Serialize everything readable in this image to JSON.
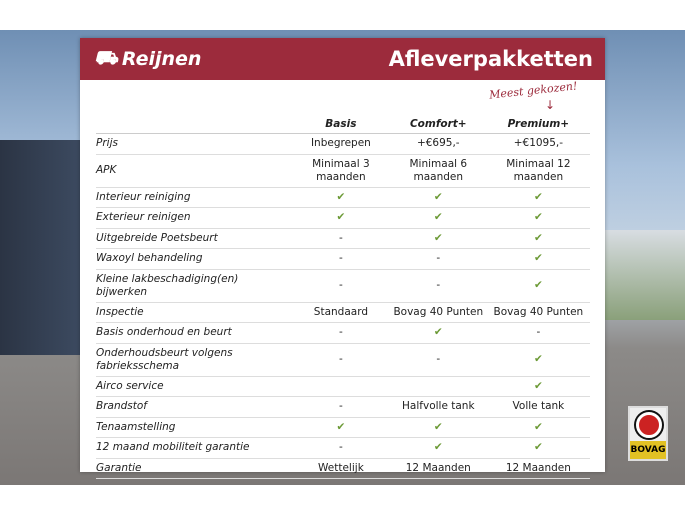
{
  "header": {
    "logo": "Reijnen",
    "title": "Afleverpakketten"
  },
  "note": "Meest gekozen!",
  "columns": [
    "Basis",
    "Comfort+",
    "Premium+"
  ],
  "rows": [
    {
      "label": "Prijs",
      "values": [
        "Inbegrepen",
        "+€695,-",
        "+€1095,-"
      ]
    },
    {
      "label": "APK",
      "values": [
        "Minimaal 3 maanden",
        "Minimaal 6 maanden",
        "Minimaal 12 maanden"
      ]
    },
    {
      "label": "Interieur reiniging",
      "values": [
        "✔",
        "✔",
        "✔"
      ]
    },
    {
      "label": "Exterieur reinigen",
      "values": [
        "✔",
        "✔",
        "✔"
      ]
    },
    {
      "label": "Uitgebreide Poetsbeurt",
      "values": [
        "-",
        "✔",
        "✔"
      ]
    },
    {
      "label": "Waxoyl behandeling",
      "values": [
        "-",
        "-",
        "✔"
      ]
    },
    {
      "label": "Kleine lakbeschadiging(en) bijwerken",
      "values": [
        "-",
        "-",
        "✔"
      ]
    },
    {
      "label": "Inspectie",
      "values": [
        "Standaard",
        "Bovag 40 Punten",
        "Bovag 40 Punten"
      ]
    },
    {
      "label": "Basis onderhoud en beurt",
      "values": [
        "-",
        "✔",
        "-"
      ]
    },
    {
      "label": "Onderhoudsbeurt volgens fabrieksschema",
      "values": [
        "-",
        "-",
        "✔"
      ]
    },
    {
      "label": "Airco service",
      "values": [
        "",
        "",
        "✔"
      ]
    },
    {
      "label": "Brandstof",
      "values": [
        "-",
        "Halfvolle tank",
        "Volle tank"
      ]
    },
    {
      "label": "Tenaamstelling",
      "values": [
        "✔",
        "✔",
        "✔"
      ]
    },
    {
      "label": "12 maand mobiliteit garantie",
      "values": [
        "-",
        "✔",
        "✔"
      ]
    },
    {
      "label": "Garantie",
      "values": [
        "Wettelijk",
        "12 Maanden",
        "12 Maanden"
      ]
    }
  ],
  "badge": "BOVAG",
  "colors": {
    "brand": "#9c2b3c",
    "check": "#6c9a36"
  }
}
